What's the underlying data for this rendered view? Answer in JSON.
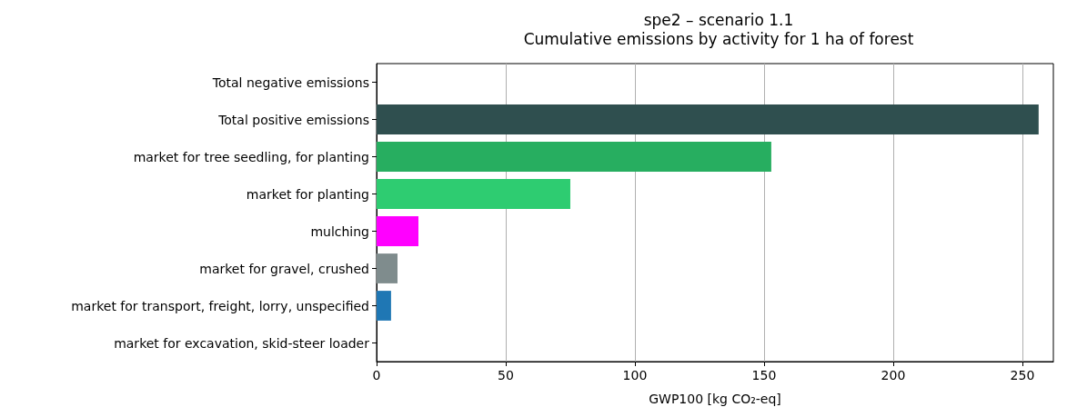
{
  "chart_data": {
    "type": "bar",
    "orientation": "horizontal",
    "title": "spe2 – scenario 1.1",
    "subtitle": "Cumulative emissions by activity for 1 ha of forest",
    "xlabel": "GWP100 [kg CO₂-eq]",
    "categories": [
      "Total negative emissions",
      "Total positive emissions",
      "market for tree seedling, for planting",
      "market for planting",
      "mulching",
      "market for gravel, crushed",
      "market for transport, freight, lorry, unspecified",
      "market for excavation, skid-steer loader"
    ],
    "values": [
      0,
      256.3,
      152.8,
      75,
      16.2,
      8.1,
      5.6,
      0
    ],
    "colors": [
      "#2f4f4f",
      "#2f4f4f",
      "#27ae60",
      "#2ecc71",
      "#ff00ff",
      "#7f8c8d",
      "#1f77b4",
      "#1f77b4"
    ],
    "xlim": [
      0,
      262
    ],
    "xticks": [
      0,
      50,
      100,
      150,
      200,
      250
    ],
    "grid": "x"
  }
}
